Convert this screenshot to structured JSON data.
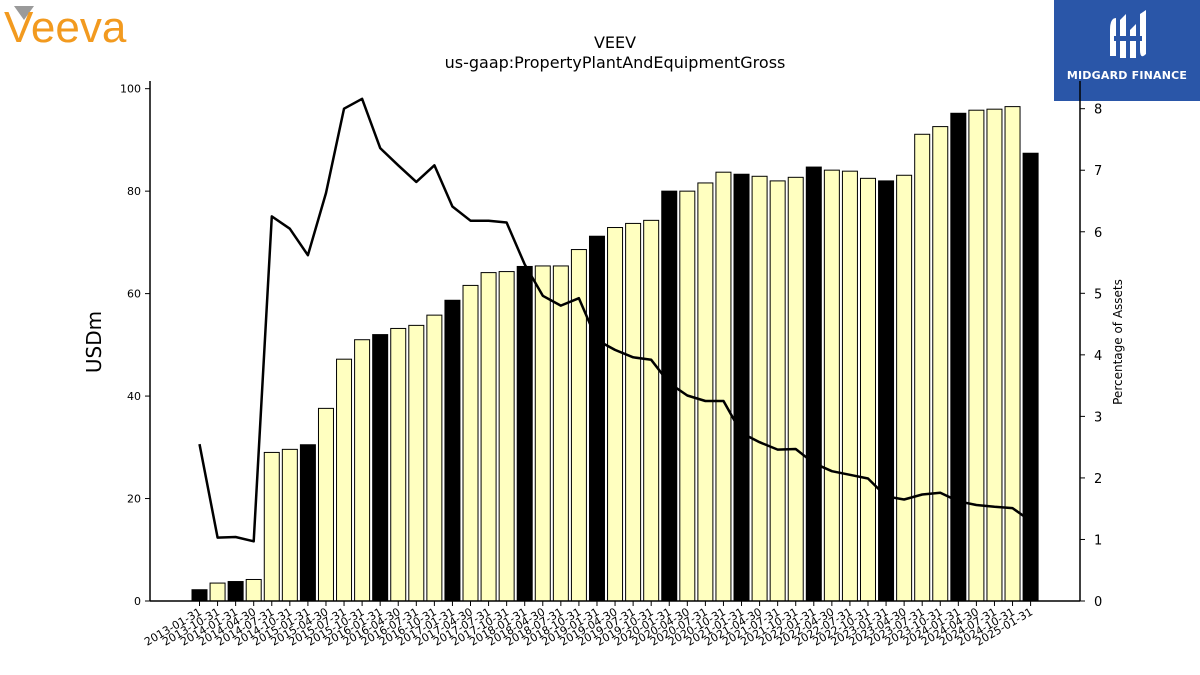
{
  "title": "VEEV",
  "subtitle": "us-gaap:PropertyPlantAndEquipmentGross",
  "brand": {
    "logo_text": "Veeva",
    "logo_color": "#f29a1f",
    "badge_text": "MIDGARD FINANCE",
    "badge_color": "#2a56a8"
  },
  "chart_data": {
    "type": "bar",
    "ylabel": "USDm",
    "y2label": "Percentage of Assets",
    "ylim": [
      0,
      101.5
    ],
    "y2lim": [
      0,
      8.45
    ],
    "yticks": [
      0,
      20,
      40,
      60,
      80,
      100
    ],
    "y2ticks": [
      0,
      1,
      2,
      3,
      4,
      5,
      6,
      7,
      8
    ],
    "colors": {
      "fiscal_year_end_bar": "#000000",
      "quarter_bar": "#ffffc0",
      "line": "#000000"
    },
    "categories": [
      "2013-01-31",
      "2013-10-31",
      "2014-01-31",
      "2014-04-30",
      "2014-07-31",
      "2014-10-31",
      "2015-01-31",
      "2015-04-30",
      "2015-07-31",
      "2015-10-31",
      "2016-01-31",
      "2016-04-30",
      "2016-07-31",
      "2016-10-31",
      "2017-01-31",
      "2017-04-30",
      "2017-07-31",
      "2017-10-31",
      "2018-01-31",
      "2018-04-30",
      "2018-07-31",
      "2018-10-31",
      "2019-01-31",
      "2019-04-30",
      "2019-07-31",
      "2019-10-31",
      "2020-01-31",
      "2020-04-30",
      "2020-07-31",
      "2020-10-31",
      "2021-01-31",
      "2021-04-30",
      "2021-07-31",
      "2021-10-31",
      "2022-01-31",
      "2022-04-30",
      "2022-07-31",
      "2022-10-31",
      "2023-01-31",
      "2023-04-30",
      "2023-07-31",
      "2023-10-31",
      "2024-01-31",
      "2024-04-30",
      "2024-07-31",
      "2024-10-31",
      "2025-01-31"
    ],
    "series": [
      {
        "values": [
          2.2,
          3.5,
          3.8,
          4.2,
          29.0,
          29.6,
          30.5,
          37.6,
          47.2,
          51.0,
          52.0,
          53.2,
          53.8,
          55.8,
          58.7,
          61.6,
          64.1,
          64.3,
          65.3,
          65.4,
          65.4,
          68.6,
          71.2,
          72.9,
          73.7,
          74.3,
          80.0,
          80.0,
          81.6,
          83.7,
          83.3,
          82.9,
          82.0,
          82.7,
          84.7,
          84.1,
          83.9,
          82.5,
          82.0,
          83.1,
          91.1,
          92.6,
          95.2,
          95.8,
          96.0,
          96.5,
          87.4
        ]
      },
      {
        "axis": "secondary",
        "values": [
          2.55,
          1.03,
          1.04,
          0.97,
          6.25,
          6.05,
          5.62,
          6.63,
          8.0,
          8.16,
          7.36,
          7.08,
          6.81,
          7.08,
          6.41,
          6.18,
          6.18,
          6.15,
          5.47,
          4.96,
          4.8,
          4.92,
          4.24,
          4.08,
          3.96,
          3.92,
          3.54,
          3.34,
          3.25,
          3.25,
          2.73,
          2.58,
          2.46,
          2.47,
          2.24,
          2.11,
          2.05,
          1.99,
          1.7,
          1.65,
          1.73,
          1.76,
          1.62,
          1.56,
          1.53,
          1.51,
          1.3
        ]
      }
    ]
  }
}
